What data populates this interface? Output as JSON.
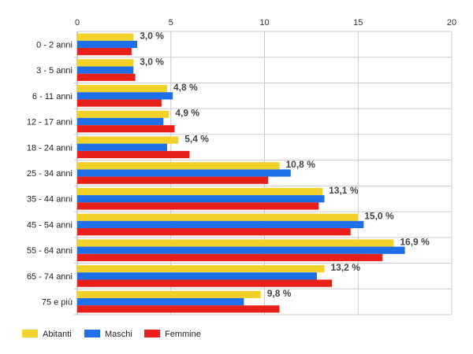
{
  "chart_data": {
    "type": "bar",
    "orientation": "horizontal",
    "title": "",
    "xlabel": "",
    "ylabel": "",
    "xlim": [
      0,
      20
    ],
    "xticks": [
      "0",
      "5",
      "10",
      "15",
      "20"
    ],
    "grid": true,
    "legend_position": "bottom-left",
    "categories": [
      "0 - 2 anni",
      "3 - 5 anni",
      "6 - 11 anni",
      "12 - 17 anni",
      "18 - 24 anni",
      "25 - 34 anni",
      "35 - 44 anni",
      "45 - 54 anni",
      "55 - 64 anni",
      "65 - 74 anni",
      "75 e più"
    ],
    "series": [
      {
        "name": "Abitanti",
        "color": "#f2d12b",
        "values": [
          3.0,
          3.0,
          4.8,
          4.9,
          5.4,
          10.8,
          13.1,
          15.0,
          16.9,
          13.2,
          9.8
        ]
      },
      {
        "name": "Maschi",
        "color": "#1f6fe6",
        "values": [
          3.2,
          3.0,
          5.1,
          4.6,
          4.8,
          11.4,
          13.2,
          15.3,
          17.5,
          12.8,
          8.9
        ]
      },
      {
        "name": "Femmine",
        "color": "#e8201a",
        "values": [
          2.9,
          3.1,
          4.5,
          5.2,
          6.0,
          10.2,
          12.9,
          14.6,
          16.3,
          13.6,
          10.8
        ]
      }
    ],
    "data_labels": [
      "3,0 %",
      "3,0 %",
      "4,8 %",
      "4,9 %",
      "5,4 %",
      "10,8 %",
      "13,1 %",
      "15,0 %",
      "16,9 %",
      "13,2 %",
      "9,8 %"
    ]
  }
}
